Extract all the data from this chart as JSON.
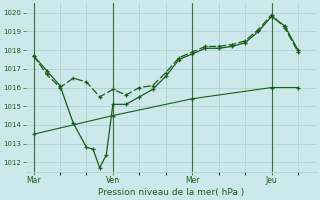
{
  "background_color": "#cce8ea",
  "grid_color": "#aaccce",
  "line_color": "#1a5c1a",
  "xlabel": "Pression niveau de la mer( hPa )",
  "ylim": [
    1011.5,
    1020.5
  ],
  "yticks": [
    1012,
    1013,
    1014,
    1015,
    1016,
    1017,
    1018,
    1019,
    1020
  ],
  "xtick_labels": [
    "Mar",
    "Ven",
    "Mer",
    "Jeu"
  ],
  "xtick_positions": [
    0,
    3,
    6,
    9
  ],
  "vline_positions": [
    0,
    3,
    6,
    9
  ],
  "line1_x": [
    0,
    0.5,
    1,
    1.5,
    2,
    2.25,
    2.5,
    2.75,
    3,
    3.5,
    4,
    4.5,
    5,
    5.5,
    6,
    6.5,
    7,
    7.5,
    8,
    8.5,
    9,
    9.5,
    10
  ],
  "line1_y": [
    1017.7,
    1016.9,
    1016.1,
    1014.1,
    1012.8,
    1012.7,
    1011.7,
    1012.4,
    1015.1,
    1015.1,
    1015.5,
    1015.9,
    1016.6,
    1017.5,
    1017.8,
    1018.1,
    1018.1,
    1018.2,
    1018.4,
    1019.0,
    1019.8,
    1019.3,
    1018.0
  ],
  "line2_x": [
    0,
    3,
    6,
    9,
    10
  ],
  "line2_y": [
    1013.5,
    1014.5,
    1015.4,
    1016.0,
    1016.0
  ],
  "line3_x": [
    0,
    0.5,
    1,
    1.5,
    2,
    2.5,
    3,
    3.5,
    4,
    4.5,
    5,
    5.5,
    6,
    6.5,
    7,
    7.5,
    8,
    8.5,
    9,
    9.5,
    10
  ],
  "line3_y": [
    1017.7,
    1016.7,
    1016.0,
    1016.5,
    1016.3,
    1015.5,
    1015.9,
    1015.6,
    1016.0,
    1016.1,
    1016.8,
    1017.6,
    1017.9,
    1018.2,
    1018.2,
    1018.3,
    1018.5,
    1019.1,
    1019.9,
    1019.2,
    1017.9
  ],
  "figsize": [
    3.2,
    2.0
  ],
  "dpi": 100
}
